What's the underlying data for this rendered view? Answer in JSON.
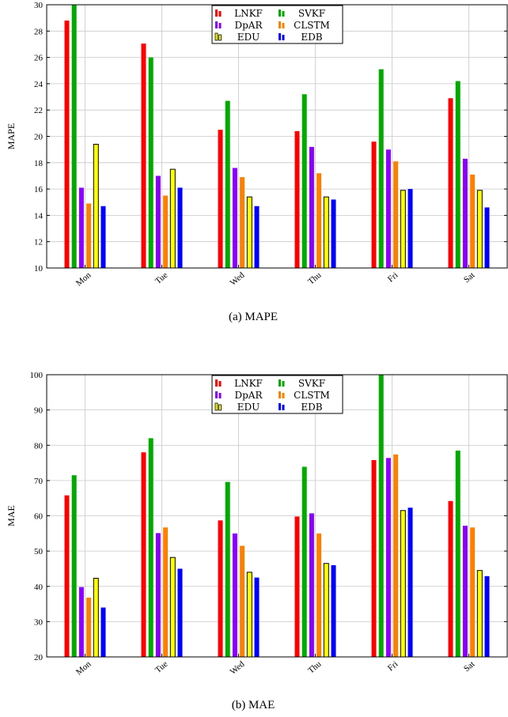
{
  "chart_data": [
    {
      "type": "bar",
      "id": "mape",
      "caption": "(a) MAPE",
      "ylabel": "MAPE",
      "xlabel": "",
      "ylim": [
        10,
        30
      ],
      "yticks": [
        10,
        12,
        14,
        16,
        18,
        20,
        22,
        24,
        26,
        28,
        30
      ],
      "grid": true,
      "legend_position": "top-center",
      "categories": [
        "Mon",
        "Tue",
        "Wed",
        "Thu",
        "Fri",
        "Sat"
      ],
      "series": [
        {
          "name": "LNKF",
          "color": "#ff0000",
          "values": [
            28.8,
            27.05,
            20.5,
            20.4,
            19.6,
            22.9
          ]
        },
        {
          "name": "SVKF",
          "color": "#00aa00",
          "values": [
            30.0,
            26.0,
            22.7,
            23.2,
            25.1,
            24.2
          ]
        },
        {
          "name": "DpAR",
          "color": "#8a00ff",
          "values": [
            16.1,
            17.0,
            17.6,
            19.2,
            19.0,
            18.3
          ]
        },
        {
          "name": "CLSTM",
          "color": "#ff8000",
          "values": [
            14.9,
            15.5,
            16.9,
            17.2,
            18.1,
            17.1
          ]
        },
        {
          "name": "EDU",
          "color": "#ffff00",
          "values": [
            19.4,
            17.5,
            15.4,
            15.4,
            15.9,
            15.9
          ]
        },
        {
          "name": "EDB",
          "color": "#0000ff",
          "values": [
            14.7,
            16.1,
            14.7,
            15.2,
            16.0,
            14.6
          ]
        }
      ]
    },
    {
      "type": "bar",
      "id": "mae",
      "caption": "(b) MAE",
      "ylabel": "MAE",
      "xlabel": "",
      "ylim": [
        20,
        100
      ],
      "yticks": [
        20,
        30,
        40,
        50,
        60,
        70,
        80,
        90,
        100
      ],
      "grid": true,
      "legend_position": "top-center",
      "categories": [
        "Mon",
        "Tue",
        "Wed",
        "Thu",
        "Fri",
        "Sat"
      ],
      "series": [
        {
          "name": "LNKF",
          "color": "#ff0000",
          "values": [
            65.8,
            78.0,
            58.7,
            59.8,
            75.8,
            64.2
          ]
        },
        {
          "name": "SVKF",
          "color": "#00aa00",
          "values": [
            71.5,
            82.0,
            69.6,
            73.9,
            100.0,
            78.5
          ]
        },
        {
          "name": "DpAR",
          "color": "#8a00ff",
          "values": [
            39.8,
            55.1,
            55.0,
            60.7,
            76.4,
            57.2
          ]
        },
        {
          "name": "CLSTM",
          "color": "#ff8000",
          "values": [
            36.8,
            56.7,
            51.5,
            55.0,
            77.4,
            56.7
          ]
        },
        {
          "name": "EDU",
          "color": "#ffff00",
          "values": [
            42.3,
            48.2,
            44.0,
            46.5,
            61.5,
            44.5
          ]
        },
        {
          "name": "EDB",
          "color": "#0000ff",
          "values": [
            34.0,
            45.0,
            42.5,
            46.0,
            62.3,
            42.9
          ]
        }
      ]
    }
  ]
}
